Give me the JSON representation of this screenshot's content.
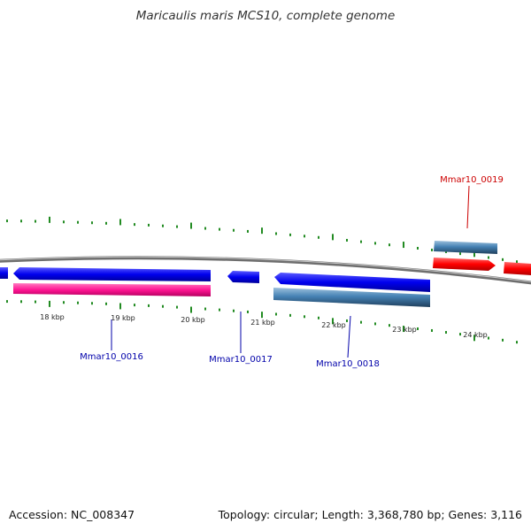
{
  "title": "Maricaulis maris MCS10, complete genome",
  "footer": {
    "accession": "Accession: NC_008347",
    "summary": "Topology: circular; Length: 3,368,780 bp; Genes: 3,116"
  },
  "colors": {
    "backbone": "#808080",
    "ticks": "#228b22",
    "cds_forward": "#ff0000",
    "cds_reverse": "#0000ee",
    "gene_forward": "#4682b4",
    "gene_reverse": "#4682b4",
    "rna": "#ff1493",
    "label_forward": "#cc0000",
    "label_reverse": "#0000aa"
  },
  "scale_labels": [
    "18 kbp",
    "19 kbp",
    "20 kbp",
    "21 kbp",
    "22 kbp",
    "23 kbp",
    "24 kbp"
  ],
  "genes": [
    {
      "name": "Mmar10_0016",
      "strand": "reverse"
    },
    {
      "name": "Mmar10_0017",
      "strand": "reverse"
    },
    {
      "name": "Mmar10_0018",
      "strand": "reverse"
    },
    {
      "name": "Mmar10_0019",
      "strand": "forward"
    }
  ]
}
